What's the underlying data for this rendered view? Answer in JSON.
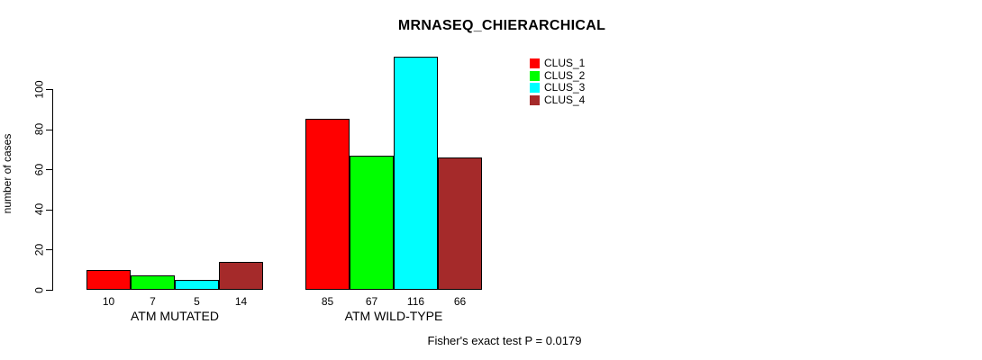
{
  "chart_data": {
    "type": "bar",
    "title": "MRNASEQ_CHIERARCHICAL",
    "ylabel": "number of cases",
    "xlabel": "",
    "ylim": [
      0,
      116
    ],
    "yticks": [
      0,
      20,
      40,
      60,
      80,
      100
    ],
    "grid": false,
    "legend_position": "top-right",
    "categories": [
      "ATM MUTATED",
      "ATM WILD-TYPE"
    ],
    "series": [
      {
        "name": "CLUS_1",
        "color": "#FF0000",
        "values": [
          10,
          85
        ]
      },
      {
        "name": "CLUS_2",
        "color": "#00FF00",
        "values": [
          7,
          67
        ]
      },
      {
        "name": "CLUS_3",
        "color": "#00FFFF",
        "values": [
          5,
          116
        ]
      },
      {
        "name": "CLUS_4",
        "color": "#A52A2A",
        "values": [
          14,
          66
        ]
      }
    ],
    "bar_value_labels": [
      [
        "10",
        "7",
        "5",
        "14"
      ],
      [
        "85",
        "67",
        "116",
        "66"
      ]
    ],
    "annotation": "Fisher's exact test P = 0.0179",
    "bar_border_color": "#000000"
  }
}
